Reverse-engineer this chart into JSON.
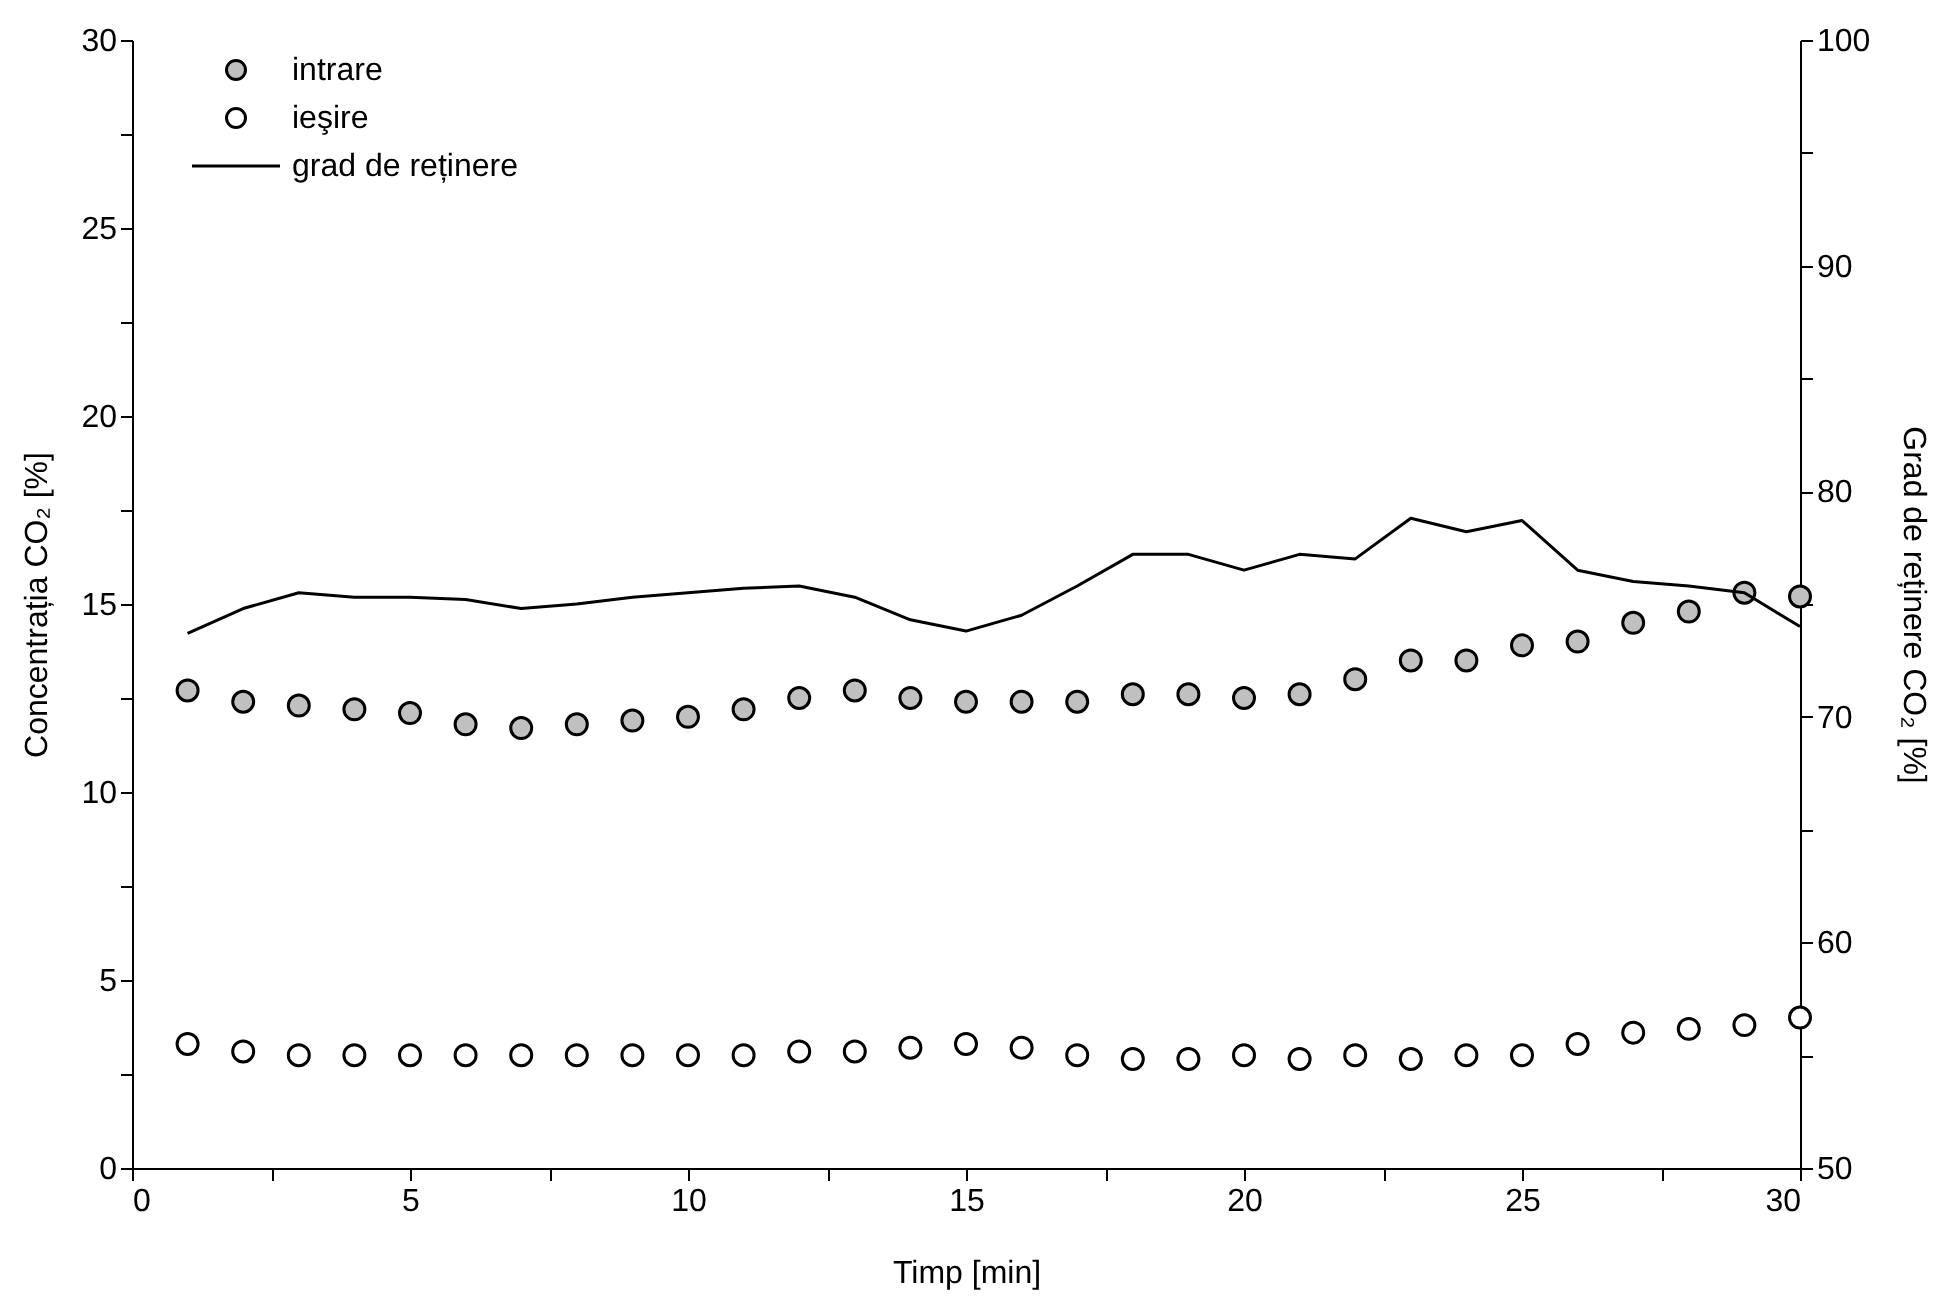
{
  "chart_data": {
    "type": "scatter",
    "xlabel": "Timp [min]",
    "ylabel": "Concentrația CO₂ [%]",
    "y2label": "Grad de reținere CO₂ [%]",
    "x": [
      1,
      2,
      3,
      4,
      5,
      6,
      7,
      8,
      9,
      10,
      11,
      12,
      13,
      14,
      15,
      16,
      17,
      18,
      19,
      20,
      21,
      22,
      23,
      24,
      25,
      26,
      27,
      28,
      29,
      30
    ],
    "series": [
      {
        "name": "intrare",
        "marker": "circle",
        "color": "#c0c0c0",
        "values": [
          12.7,
          12.4,
          12.3,
          12.2,
          12.1,
          11.8,
          11.7,
          11.8,
          11.9,
          12.0,
          12.2,
          12.5,
          12.7,
          12.5,
          12.4,
          12.4,
          12.4,
          12.6,
          12.6,
          12.5,
          12.6,
          13.0,
          13.5,
          13.5,
          13.9,
          14.0,
          14.5,
          14.8,
          15.3,
          15.2
        ]
      },
      {
        "name": "ieşire",
        "marker": "circle",
        "color": "#ffffff",
        "values": [
          3.3,
          3.1,
          3.0,
          3.0,
          3.0,
          3.0,
          3.0,
          3.0,
          3.0,
          3.0,
          3.0,
          3.1,
          3.1,
          3.2,
          3.3,
          3.2,
          3.0,
          2.9,
          2.9,
          3.0,
          2.9,
          3.0,
          2.9,
          3.0,
          3.0,
          3.3,
          3.6,
          3.7,
          3.8,
          4.0
        ]
      },
      {
        "name": "grad de reținere",
        "type": "line",
        "axis": "y2",
        "line_style": "solid",
        "color": "#000000",
        "values": [
          73.7,
          74.8,
          75.5,
          75.3,
          75.3,
          75.2,
          74.8,
          75.0,
          75.3,
          75.5,
          75.7,
          75.8,
          75.3,
          74.3,
          73.8,
          74.5,
          75.8,
          77.2,
          77.2,
          76.5,
          77.2,
          77.0,
          78.8,
          78.2,
          78.7,
          76.5,
          76.0,
          75.8,
          75.5,
          74.0
        ]
      }
    ],
    "xlim": [
      0,
      30
    ],
    "xticks": [
      0,
      {
        "value": 2.5,
        "label": null
      },
      5,
      {
        "value": 7.5,
        "label": null
      },
      10,
      {
        "value": 12.5,
        "label": null
      },
      15,
      {
        "value": 17.5,
        "label": null
      },
      20,
      {
        "value": 22.5,
        "label": null
      },
      25,
      {
        "value": 27.5,
        "label": null
      },
      30
    ],
    "ylim": [
      0,
      30
    ],
    "yticks": [
      0,
      {
        "value": 2.5,
        "label": null
      },
      5,
      {
        "value": 7.5,
        "label": null
      },
      10,
      {
        "value": 12.5,
        "label": null
      },
      15,
      {
        "value": 17.5,
        "label": null
      },
      20,
      {
        "value": 22.5,
        "label": null
      },
      25,
      {
        "value": 27.5,
        "label": null
      },
      30
    ],
    "y2lim": [
      50,
      100
    ],
    "y2ticks": [
      50,
      {
        "value": 55,
        "label": null
      },
      60,
      {
        "value": 65,
        "label": null
      },
      70,
      {
        "value": 75,
        "label": null
      },
      80,
      {
        "value": 85,
        "label": null
      },
      90,
      {
        "value": 95,
        "label": null
      },
      100
    ],
    "grid": false,
    "legend": "top left"
  }
}
